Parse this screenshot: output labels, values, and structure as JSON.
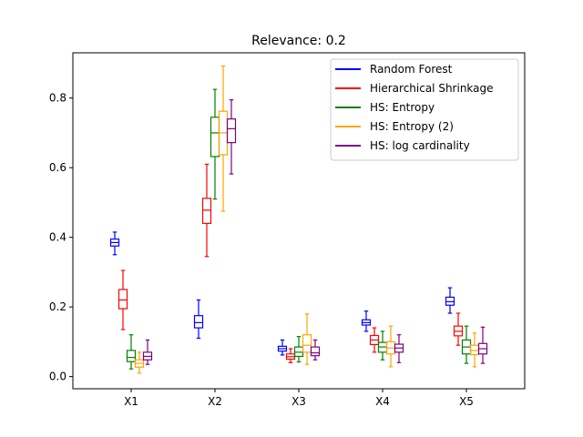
{
  "chart_data": {
    "type": "boxplot",
    "title": "Relevance: 0.2",
    "xlabel": "",
    "ylabel": "",
    "ylim": [
      -0.035,
      0.93
    ],
    "yticks": [
      0.0,
      0.2,
      0.4,
      0.6,
      0.8
    ],
    "ytick_labels": [
      "0.0",
      "0.2",
      "0.4",
      "0.6",
      "0.8"
    ],
    "categories": [
      "X1",
      "X2",
      "X3",
      "X4",
      "X5"
    ],
    "grid": false,
    "legend_position": "top-right",
    "series": [
      {
        "name": "Random Forest",
        "color": "#0000ff",
        "boxes": [
          {
            "whisker_low": 0.35,
            "q1": 0.375,
            "median": 0.385,
            "q3": 0.395,
            "whisker_high": 0.415
          },
          {
            "whisker_low": 0.11,
            "q1": 0.14,
            "median": 0.155,
            "q3": 0.175,
            "whisker_high": 0.22
          },
          {
            "whisker_low": 0.062,
            "q1": 0.073,
            "median": 0.08,
            "q3": 0.087,
            "whisker_high": 0.105
          },
          {
            "whisker_low": 0.13,
            "q1": 0.148,
            "median": 0.155,
            "q3": 0.163,
            "whisker_high": 0.188
          },
          {
            "whisker_low": 0.182,
            "q1": 0.205,
            "median": 0.215,
            "q3": 0.228,
            "whisker_high": 0.255
          }
        ]
      },
      {
        "name": "Hierarchical Shrinkage",
        "color": "#ff0000",
        "boxes": [
          {
            "whisker_low": 0.135,
            "q1": 0.195,
            "median": 0.22,
            "q3": 0.25,
            "whisker_high": 0.305
          },
          {
            "whisker_low": 0.345,
            "q1": 0.44,
            "median": 0.478,
            "q3": 0.512,
            "whisker_high": 0.61
          },
          {
            "whisker_low": 0.04,
            "q1": 0.05,
            "median": 0.057,
            "q3": 0.065,
            "whisker_high": 0.08
          },
          {
            "whisker_low": 0.07,
            "q1": 0.092,
            "median": 0.105,
            "q3": 0.118,
            "whisker_high": 0.14
          },
          {
            "whisker_low": 0.09,
            "q1": 0.117,
            "median": 0.13,
            "q3": 0.145,
            "whisker_high": 0.182
          }
        ]
      },
      {
        "name": "HS: Entropy",
        "color": "#008000",
        "boxes": [
          {
            "whisker_low": 0.022,
            "q1": 0.043,
            "median": 0.055,
            "q3": 0.075,
            "whisker_high": 0.12
          },
          {
            "whisker_low": 0.51,
            "q1": 0.632,
            "median": 0.7,
            "q3": 0.745,
            "whisker_high": 0.825
          },
          {
            "whisker_low": 0.042,
            "q1": 0.058,
            "median": 0.07,
            "q3": 0.085,
            "whisker_high": 0.115
          },
          {
            "whisker_low": 0.048,
            "q1": 0.07,
            "median": 0.085,
            "q3": 0.098,
            "whisker_high": 0.13
          },
          {
            "whisker_low": 0.038,
            "q1": 0.065,
            "median": 0.085,
            "q3": 0.105,
            "whisker_high": 0.145
          }
        ]
      },
      {
        "name": "HS: Entropy (2)",
        "color": "#ffa500",
        "boxes": [
          {
            "whisker_low": 0.01,
            "q1": 0.027,
            "median": 0.038,
            "q3": 0.048,
            "whisker_high": 0.07
          },
          {
            "whisker_low": 0.475,
            "q1": 0.637,
            "median": 0.7,
            "q3": 0.762,
            "whisker_high": 0.892
          },
          {
            "whisker_low": 0.035,
            "q1": 0.07,
            "median": 0.09,
            "q3": 0.12,
            "whisker_high": 0.18
          },
          {
            "whisker_low": 0.028,
            "q1": 0.065,
            "median": 0.082,
            "q3": 0.1,
            "whisker_high": 0.145
          },
          {
            "whisker_low": 0.028,
            "q1": 0.063,
            "median": 0.075,
            "q3": 0.09,
            "whisker_high": 0.125
          }
        ]
      },
      {
        "name": "HS: log cardinality",
        "color": "#800080",
        "boxes": [
          {
            "whisker_low": 0.035,
            "q1": 0.048,
            "median": 0.058,
            "q3": 0.07,
            "whisker_high": 0.105
          },
          {
            "whisker_low": 0.582,
            "q1": 0.672,
            "median": 0.712,
            "q3": 0.74,
            "whisker_high": 0.795
          },
          {
            "whisker_low": 0.048,
            "q1": 0.06,
            "median": 0.068,
            "q3": 0.085,
            "whisker_high": 0.105
          },
          {
            "whisker_low": 0.04,
            "q1": 0.07,
            "median": 0.082,
            "q3": 0.093,
            "whisker_high": 0.12
          },
          {
            "whisker_low": 0.038,
            "q1": 0.065,
            "median": 0.08,
            "q3": 0.095,
            "whisker_high": 0.142
          }
        ]
      }
    ]
  }
}
